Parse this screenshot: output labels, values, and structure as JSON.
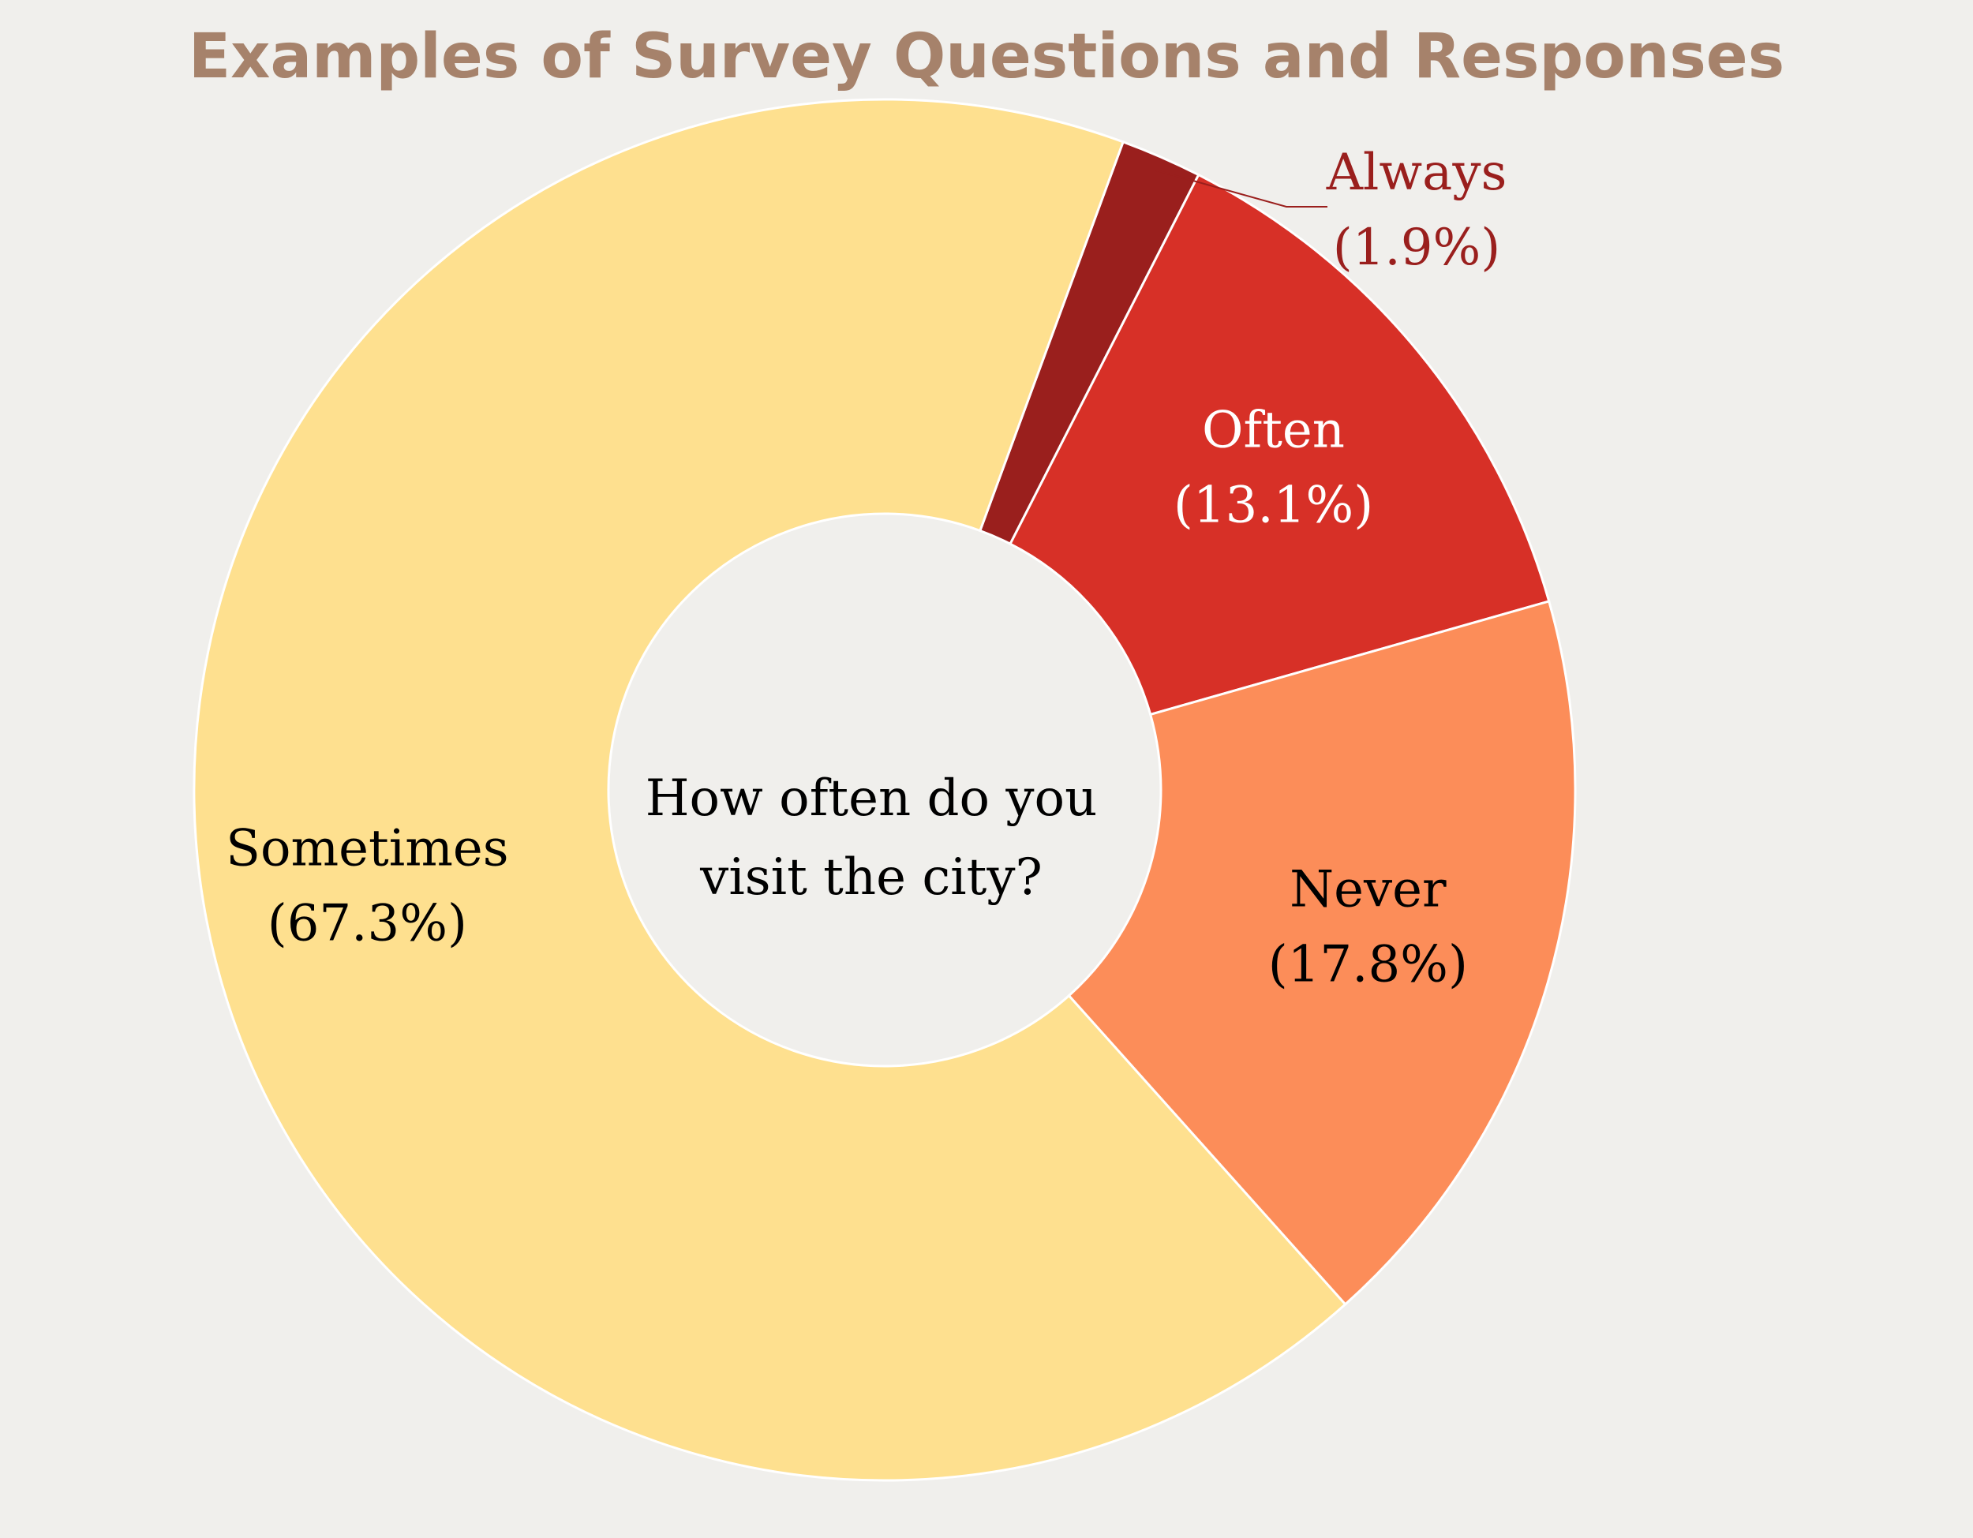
{
  "chart_data": {
    "type": "pie",
    "variant": "donut",
    "title": "Examples of Survey Questions and Responses",
    "center_text": [
      "How often do you",
      "visit the city?"
    ],
    "slices": [
      {
        "label": "Always",
        "percent_text": "(1.9%)",
        "value": 1.9,
        "color": "#9a1f1d"
      },
      {
        "label": "Often",
        "percent_text": "(13.1%)",
        "value": 13.1,
        "color": "#d73027"
      },
      {
        "label": "Never",
        "percent_text": "(17.8%)",
        "value": 17.8,
        "color": "#fc8d59"
      },
      {
        "label": "Sometimes",
        "percent_text": "(67.3%)",
        "value": 67.3,
        "color": "#fee08f"
      }
    ],
    "colors": {
      "background": "#f0efec",
      "title": "#a6826b",
      "label_dark": "#000000",
      "label_light": "#ffffff",
      "slice_border": "#ffffff"
    }
  }
}
